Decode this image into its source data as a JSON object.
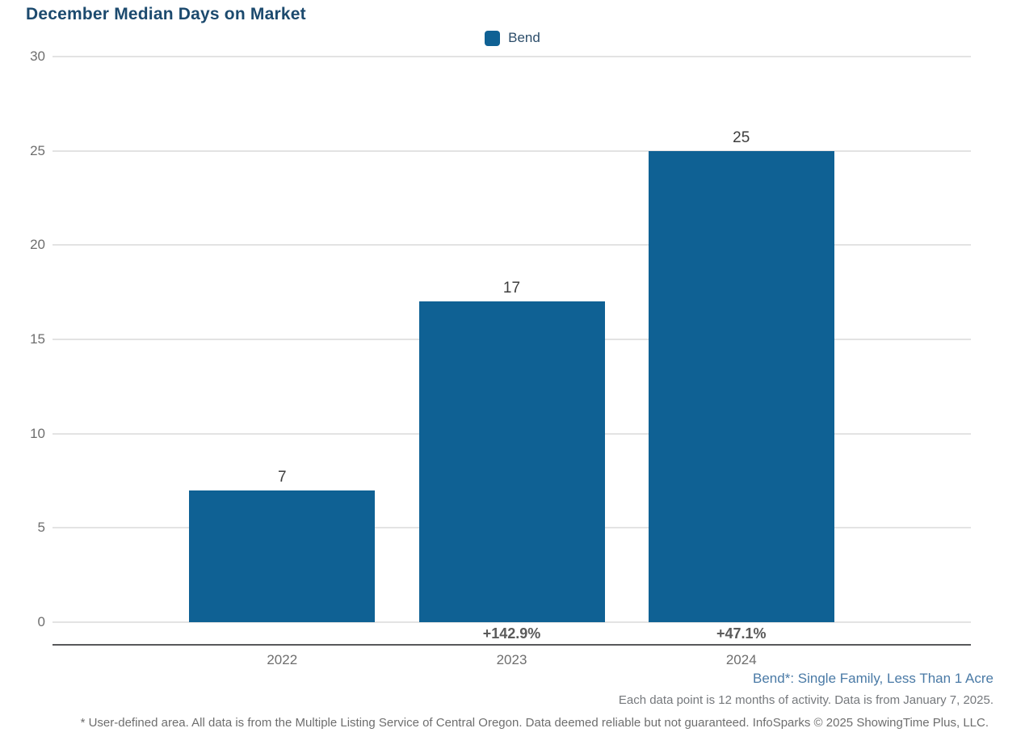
{
  "title": "December Median Days on Market",
  "legend": {
    "label": "Bend"
  },
  "colors": {
    "bar": "#0f6194",
    "title": "#1c4a6e",
    "series_footnote": "#4a7aa6",
    "axis_line": "#58595b",
    "gridline": "#e3e3e3",
    "tick_text": "#6e6e6e"
  },
  "chart_data": {
    "type": "bar",
    "title": "December Median Days on Market",
    "series_name": "Bend",
    "categories": [
      "2022",
      "2023",
      "2024"
    ],
    "values": [
      7,
      17,
      25
    ],
    "value_labels": [
      "7",
      "17",
      "25"
    ],
    "pct_change_labels": [
      "",
      "+142.9%",
      "+47.1%"
    ],
    "xlabel": "",
    "ylabel": "",
    "ylim": [
      0,
      30
    ],
    "yticks": [
      0,
      5,
      10,
      15,
      20,
      25,
      30
    ],
    "grid": true,
    "legend_position": "top-center",
    "bar_color": "#0f6194"
  },
  "footnotes": {
    "series_definition": "Bend*: Single Family, Less Than 1 Acre",
    "data_point_note": "Each data point is 12 months of activity. Data is from January 7, 2025.",
    "disclaimer": "* User-defined area. All data is from the Multiple Listing Service of Central Oregon. Data deemed reliable but not guaranteed. InfoSparks © 2025 ShowingTime Plus, LLC."
  }
}
